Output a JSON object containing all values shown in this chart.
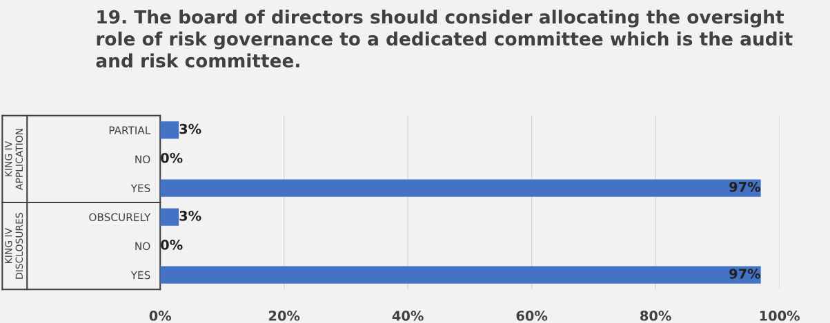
{
  "chart_data": {
    "type": "bar",
    "orientation": "horizontal",
    "title": "19. The board of directors should consider allocating the oversight role of risk governance to a dedicated committee which is the audit and risk committee.",
    "categories": [
      "PARTIAL",
      "NO",
      "YES",
      "OBSCURELY",
      "NO",
      "YES"
    ],
    "values": [
      3,
      0,
      97,
      3,
      0,
      97
    ],
    "color": "#4472c4",
    "annotations": [
      "KING IV APPLICATION",
      "KING IV DISCLOSURES"
    ],
    "xlim": [
      0,
      100
    ],
    "xticks": [
      {
        "value": 0,
        "label": "0%"
      },
      {
        "value": 20,
        "label": "20%"
      },
      {
        "value": 40,
        "label": "40%"
      },
      {
        "value": 60,
        "label": "60%"
      },
      {
        "value": 80,
        "label": "80%"
      },
      {
        "value": 100,
        "label": "100%"
      }
    ],
    "grid": "x",
    "value_labels": [
      "3%",
      "0%",
      "97%",
      "3%",
      "0%",
      "97%"
    ]
  }
}
